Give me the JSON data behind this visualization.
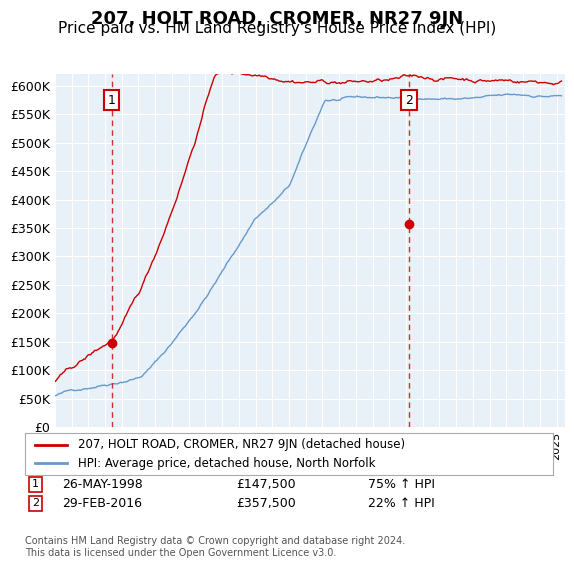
{
  "title": "207, HOLT ROAD, CROMER, NR27 9JN",
  "subtitle": "Price paid vs. HM Land Registry's House Price Index (HPI)",
  "ylim": [
    0,
    620000
  ],
  "xlim_start": 1995.0,
  "xlim_end": 2025.5,
  "sale1_date": 1998.4,
  "sale1_price": 147500,
  "sale1_label": "1",
  "sale1_text": "26-MAY-1998",
  "sale1_amount": "£147,500",
  "sale1_hpi": "75% ↑ HPI",
  "sale2_date": 2016.17,
  "sale2_price": 357500,
  "sale2_label": "2",
  "sale2_text": "29-FEB-2016",
  "sale2_amount": "£357,500",
  "sale2_hpi": "22% ↑ HPI",
  "red_line_color": "#cc0000",
  "blue_line_color": "#6699cc",
  "plot_bg": "#e8f0f8",
  "grid_color": "#ffffff",
  "legend_label_red": "207, HOLT ROAD, CROMER, NR27 9JN (detached house)",
  "legend_label_blue": "HPI: Average price, detached house, North Norfolk",
  "footer": "Contains HM Land Registry data © Crown copyright and database right 2024.\nThis data is licensed under the Open Government Licence v3.0.",
  "title_fontsize": 13,
  "subtitle_fontsize": 11,
  "tick_fontsize": 9
}
